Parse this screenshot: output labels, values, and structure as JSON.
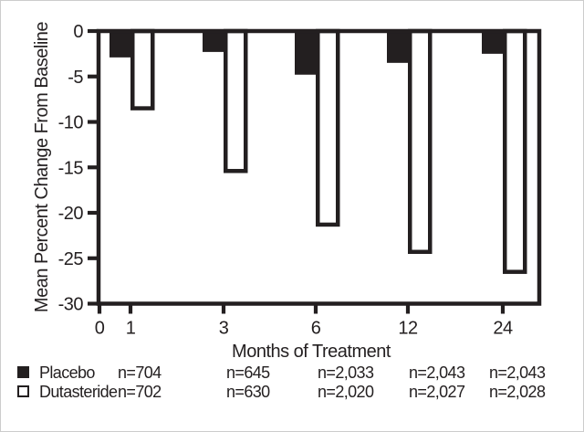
{
  "figure": {
    "background": "#ffffff",
    "ink_color": "#231f20"
  },
  "chart_data": {
    "type": "bar",
    "title": "",
    "xlabel": "Months of Treatment",
    "ylabel": "Mean Percent Change From Baseline",
    "categories": [
      1,
      3,
      6,
      12,
      24
    ],
    "x_tick_labels": [
      "0",
      "1",
      "3",
      "6",
      "12",
      "24"
    ],
    "y_ticks": [
      0,
      -5,
      -10,
      -15,
      -20,
      -25,
      -30
    ],
    "ylim": [
      -30,
      0
    ],
    "grid": false,
    "legend_position": "bottom",
    "series": [
      {
        "name": "Placebo",
        "fill": "#231f20",
        "style": "filled",
        "values": [
          -2.9,
          -2.3,
          -4.8,
          -3.5,
          -2.5
        ]
      },
      {
        "name": "Dutasteride",
        "fill": "#ffffff",
        "style": "open",
        "values": [
          -8.7,
          -15.6,
          -21.5,
          -24.5,
          -26.7
        ]
      }
    ]
  },
  "legend": {
    "rows": [
      {
        "marker": "filled-square",
        "label": "Placebo",
        "n_values": [
          "n=704",
          "n=645",
          "n=2,033",
          "n=2,043",
          "n=2,043"
        ]
      },
      {
        "marker": "open-square",
        "label": "Dutasteride",
        "n_values": [
          "n=702",
          "n=630",
          "n=2,020",
          "n=2,027",
          "n=2,028"
        ]
      }
    ]
  }
}
